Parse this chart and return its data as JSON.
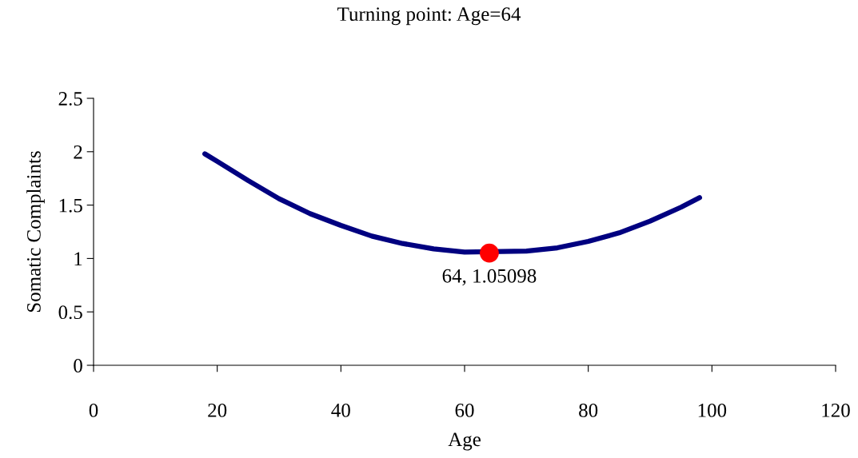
{
  "chart_data": {
    "type": "line",
    "title": "Turning point: Age=64",
    "xlabel": "Age",
    "ylabel": "Somatic Complaints",
    "series": [
      {
        "color": "#000080",
        "x": [
          18,
          20,
          25,
          30,
          35,
          40,
          45,
          50,
          55,
          60,
          70,
          75,
          80,
          85,
          90,
          95,
          98
        ],
        "values": [
          1.98,
          1.91,
          1.73,
          1.56,
          1.42,
          1.31,
          1.21,
          1.14,
          1.09,
          1.06,
          1.07,
          1.1,
          1.16,
          1.24,
          1.35,
          1.48,
          1.57
        ]
      },
      {
        "type": "scatter",
        "color": "#ff0000",
        "marker": "circle",
        "x": [
          64
        ],
        "values": [
          1.05098
        ]
      }
    ],
    "annotations": [
      {
        "text": "64, 1.05098",
        "x": 64,
        "y": 1.05098
      }
    ],
    "xlim": [
      0,
      120
    ],
    "xticks": [
      0,
      20,
      40,
      60,
      80,
      100,
      120
    ],
    "ylim": [
      0,
      2.5
    ],
    "yticks": [
      0,
      0.5,
      1,
      1.5,
      2,
      2.5
    ],
    "grid": false,
    "legend": false,
    "marker": "none",
    "line_style": "solid"
  }
}
